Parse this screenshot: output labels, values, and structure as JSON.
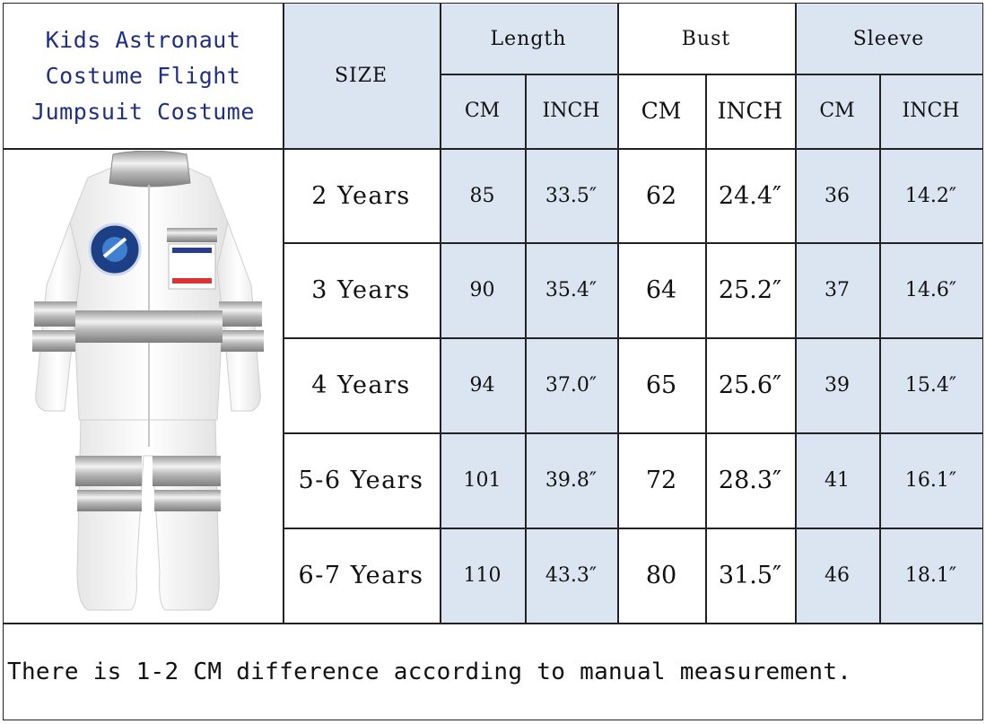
{
  "title_lines": [
    "Kids Astronaut",
    "Costume Flight",
    "Jumpsuit Costume"
  ],
  "headers": {
    "size": "SIZE",
    "length": "Length",
    "bust": "Bust",
    "sleeve": "Sleeve",
    "cm": "CM",
    "inch": "INCH"
  },
  "rows": [
    {
      "size": "2 Years",
      "length_cm": "85",
      "length_in": "33.5″",
      "bust_cm": "62",
      "bust_in": "24.4″",
      "sleeve_cm": "36",
      "sleeve_in": "14.2″"
    },
    {
      "size": "3 Years",
      "length_cm": "90",
      "length_in": "35.4″",
      "bust_cm": "64",
      "bust_in": "25.2″",
      "sleeve_cm": "37",
      "sleeve_in": "14.6″"
    },
    {
      "size": "4 Years",
      "length_cm": "94",
      "length_in": "37.0″",
      "bust_cm": "65",
      "bust_in": "25.6″",
      "sleeve_cm": "39",
      "sleeve_in": "15.4″"
    },
    {
      "size": "5-6 Years",
      "length_cm": "101",
      "length_in": "39.8″",
      "bust_cm": "72",
      "bust_in": "28.3″",
      "sleeve_cm": "41",
      "sleeve_in": "16.1″"
    },
    {
      "size": "6-7 Years",
      "length_cm": "110",
      "length_in": "43.3″",
      "bust_cm": "80",
      "bust_in": "31.5″",
      "sleeve_cm": "46",
      "sleeve_in": "18.1″"
    }
  ],
  "note": "There is 1-2 CM difference according to manual measurement.",
  "colors": {
    "header_blue": "#dbe5f1",
    "title_blue": "#1f2f86",
    "border": "#222222"
  },
  "image": {
    "icon": "astronaut-jumpsuit-illustration"
  }
}
